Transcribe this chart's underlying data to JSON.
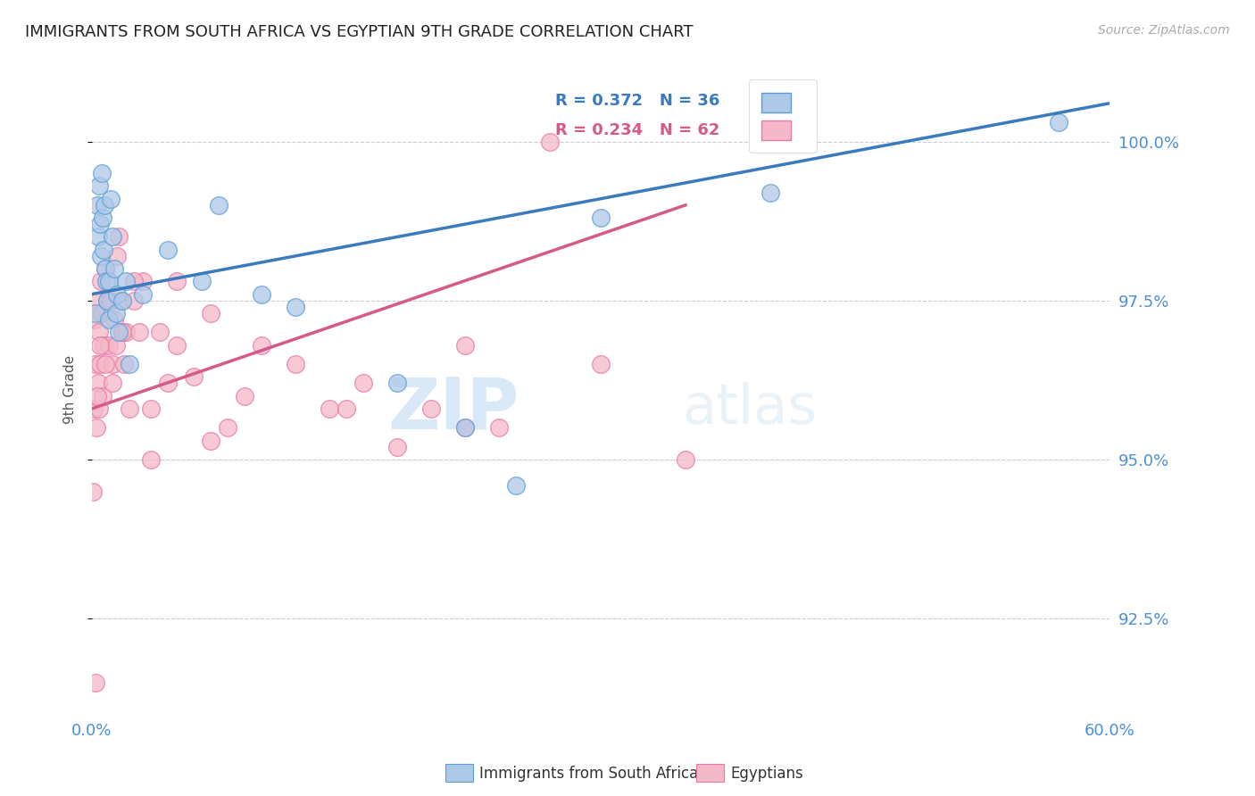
{
  "title": "IMMIGRANTS FROM SOUTH AFRICA VS EGYPTIAN 9TH GRADE CORRELATION CHART",
  "source": "Source: ZipAtlas.com",
  "ylabel": "9th Grade",
  "ylabel_right_ticks": [
    92.5,
    95.0,
    97.5,
    100.0
  ],
  "ylabel_right_labels": [
    "92.5%",
    "95.0%",
    "97.5%",
    "100.0%"
  ],
  "xmin": 0.0,
  "xmax": 60.0,
  "ymin": 91.0,
  "ymax": 101.2,
  "legend_blue_r": "R = 0.372",
  "legend_blue_n": "N = 36",
  "legend_pink_r": "R = 0.234",
  "legend_pink_n": "N = 62",
  "legend_label_blue": "Immigrants from South Africa",
  "legend_label_pink": "Egyptians",
  "blue_color": "#aec8e8",
  "pink_color": "#f4b8c8",
  "blue_edge_color": "#5a9fd4",
  "pink_edge_color": "#e87aaa",
  "blue_line_color": "#3a7abf",
  "pink_line_color": "#d45a8a",
  "watermark_zip": "ZIP",
  "watermark_atlas": "atlas",
  "blue_x": [
    0.2,
    0.3,
    0.35,
    0.4,
    0.5,
    0.55,
    0.6,
    0.65,
    0.7,
    0.75,
    0.8,
    0.85,
    0.9,
    1.0,
    1.0,
    1.1,
    1.2,
    1.3,
    1.4,
    1.5,
    1.6,
    1.8,
    2.0,
    2.2,
    3.0,
    4.5,
    6.5,
    7.5,
    10.0,
    12.0,
    18.0,
    22.0,
    25.0,
    30.0,
    40.0,
    57.0
  ],
  "blue_y": [
    97.3,
    99.0,
    98.5,
    99.3,
    98.7,
    98.2,
    99.5,
    98.8,
    98.3,
    99.0,
    98.0,
    97.8,
    97.5,
    97.8,
    97.2,
    99.1,
    98.5,
    98.0,
    97.3,
    97.6,
    97.0,
    97.5,
    97.8,
    96.5,
    97.6,
    98.3,
    97.8,
    99.0,
    97.6,
    97.4,
    96.2,
    95.5,
    94.6,
    98.8,
    99.2,
    100.3
  ],
  "pink_x": [
    0.05,
    0.1,
    0.15,
    0.2,
    0.25,
    0.3,
    0.35,
    0.4,
    0.45,
    0.5,
    0.55,
    0.6,
    0.65,
    0.7,
    0.8,
    0.9,
    1.0,
    1.1,
    1.2,
    1.3,
    1.4,
    1.5,
    1.6,
    1.7,
    1.8,
    1.9,
    2.0,
    2.2,
    2.5,
    2.8,
    3.0,
    3.5,
    4.0,
    4.5,
    5.0,
    6.0,
    7.0,
    8.0,
    10.0,
    12.0,
    14.0,
    16.0,
    18.0,
    20.0,
    22.0,
    24.0,
    27.0,
    30.0,
    35.0,
    22.0,
    9.0,
    15.0,
    7.0,
    5.0,
    3.5,
    2.5,
    1.8,
    1.2,
    0.8,
    0.5,
    0.3,
    0.2
  ],
  "pink_y": [
    94.5,
    95.8,
    97.2,
    96.5,
    95.5,
    97.5,
    96.2,
    95.8,
    97.0,
    96.5,
    97.8,
    97.3,
    96.0,
    96.8,
    98.0,
    97.5,
    96.8,
    97.5,
    96.5,
    97.2,
    96.8,
    98.2,
    98.5,
    97.5,
    97.0,
    96.5,
    97.0,
    95.8,
    97.5,
    97.0,
    97.8,
    95.8,
    97.0,
    96.2,
    97.8,
    96.3,
    97.3,
    95.5,
    96.8,
    96.5,
    95.8,
    96.2,
    95.2,
    95.8,
    96.8,
    95.5,
    100.0,
    96.5,
    95.0,
    95.5,
    96.0,
    95.8,
    95.3,
    96.8,
    95.0,
    97.8,
    97.0,
    96.2,
    96.5,
    96.8,
    96.0,
    91.5
  ],
  "blue_trend_x": [
    0.0,
    60.0
  ],
  "blue_trend_y": [
    97.6,
    100.6
  ],
  "pink_trend_x": [
    0.0,
    35.0
  ],
  "pink_trend_y": [
    95.8,
    99.0
  ]
}
